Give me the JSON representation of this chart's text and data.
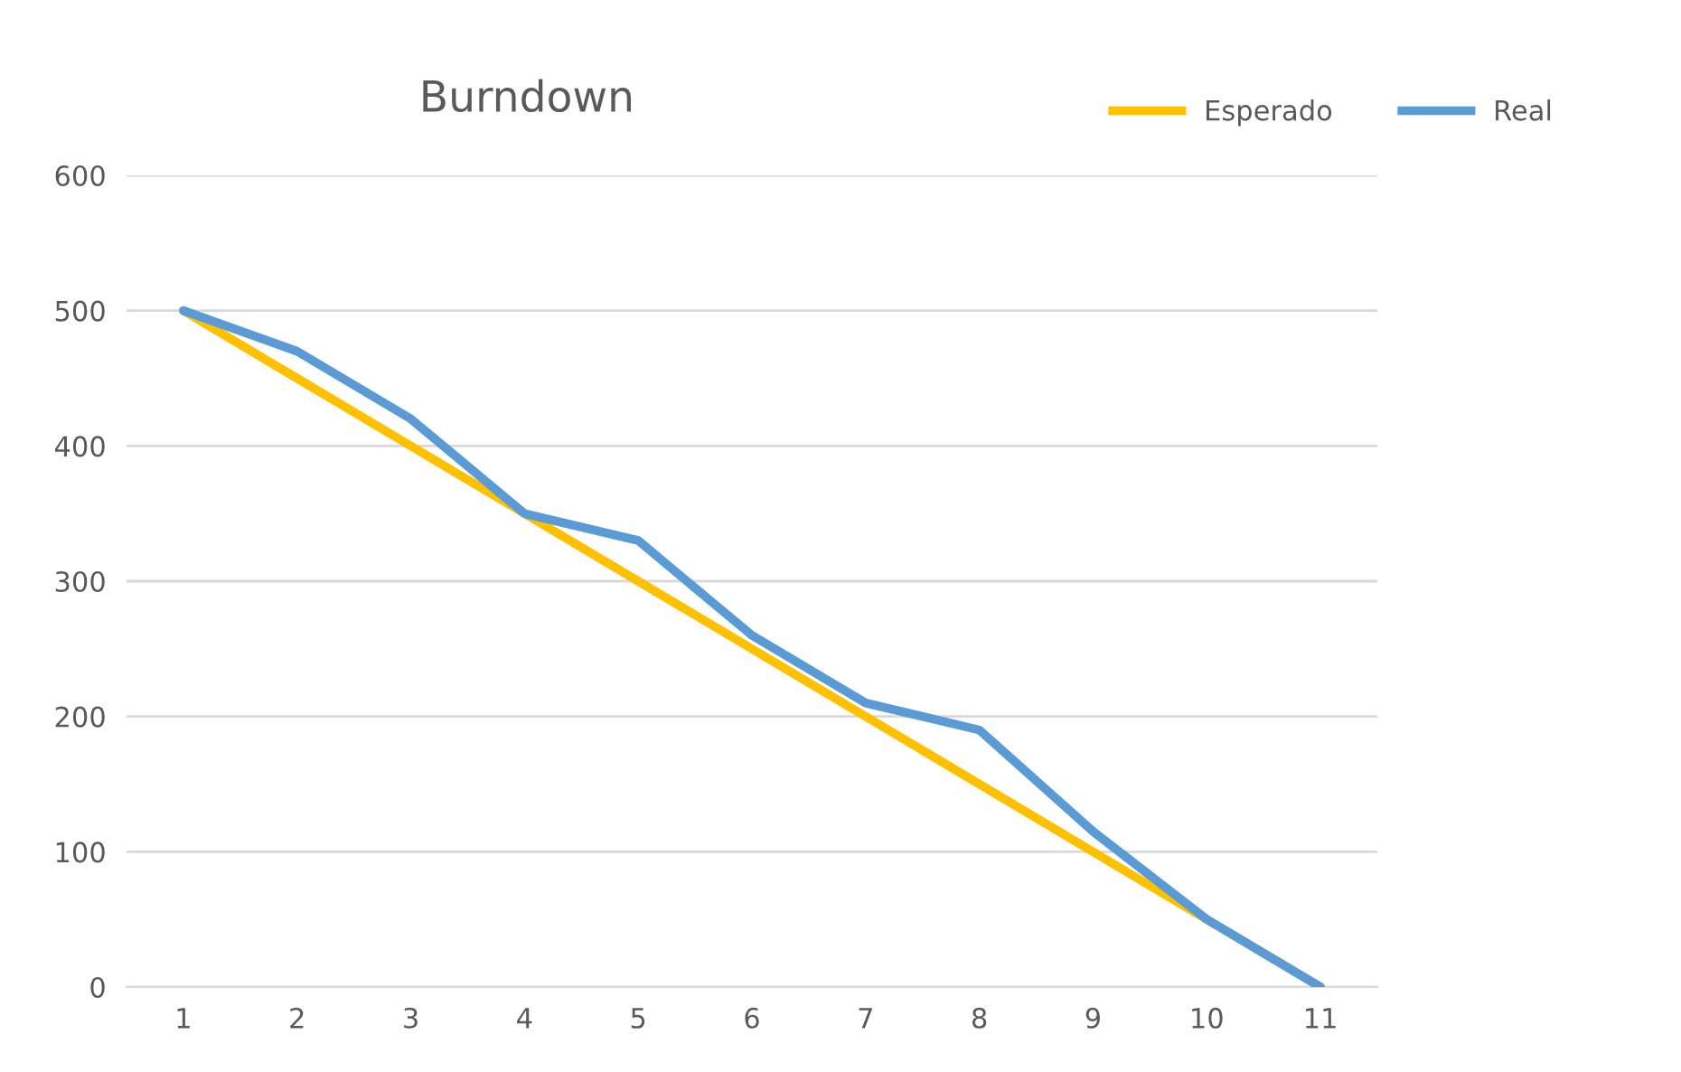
{
  "chart_data": {
    "type": "line",
    "title": "Burndown",
    "categories": [
      "1",
      "2",
      "3",
      "4",
      "5",
      "6",
      "7",
      "8",
      "9",
      "10",
      "11"
    ],
    "series": [
      {
        "name": "Esperado",
        "color": "#ffc000",
        "values": [
          500,
          450,
          400,
          350,
          300,
          250,
          200,
          150,
          100,
          50,
          0
        ]
      },
      {
        "name": "Real",
        "color": "#5b9bd5",
        "values": [
          500,
          470,
          420,
          350,
          330,
          260,
          210,
          190,
          115,
          50,
          0
        ]
      }
    ],
    "ylim": [
      0,
      600
    ],
    "yticks": [
      0,
      100,
      200,
      300,
      400,
      500,
      600
    ],
    "grid": "y",
    "legend": "top right",
    "marker": "none",
    "line_style": "solid"
  }
}
